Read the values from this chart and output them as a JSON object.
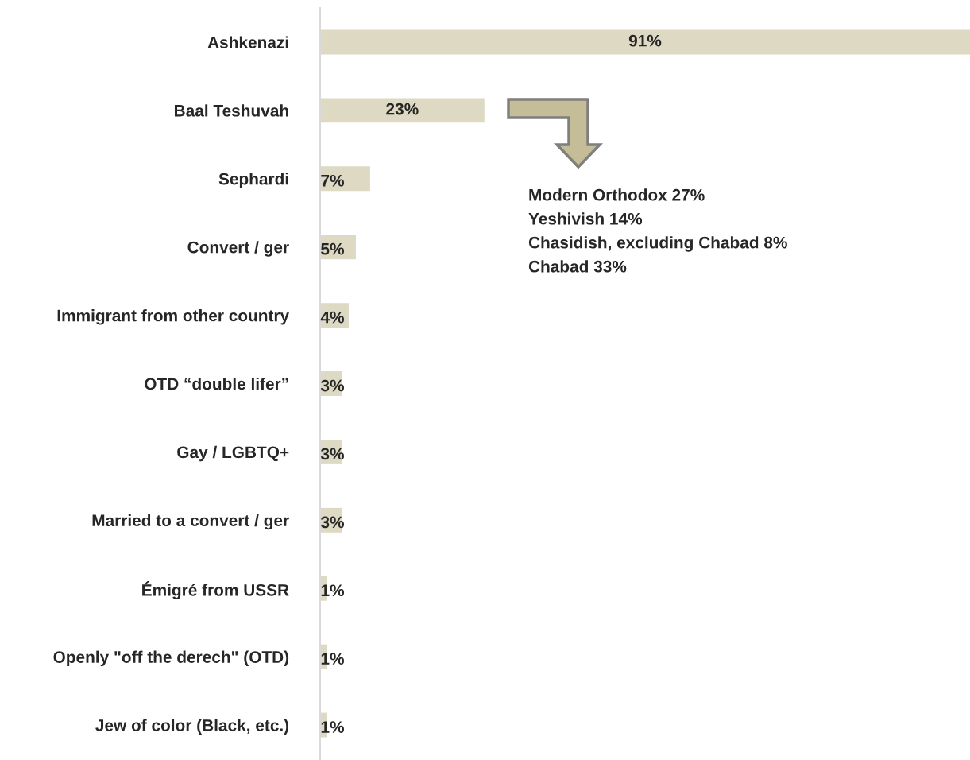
{
  "chart_data": {
    "type": "bar",
    "orientation": "horizontal",
    "categories": [
      "Ashkenazi",
      "Baal Teshuvah",
      "Sephardi",
      "Convert / ger",
      "Immigrant from other country",
      "OTD “double lifer”",
      "Gay / LGBTQ+",
      "Married to a convert / ger",
      "Émigré from USSR",
      "Openly \"off the derech\" (OTD)",
      "Jew of color (Black, etc.)"
    ],
    "values": [
      91,
      23,
      7,
      5,
      4,
      3,
      3,
      3,
      1,
      1,
      1
    ],
    "value_labels": [
      "91%",
      "23%",
      "7%",
      "5%",
      "4%",
      "3%",
      "3%",
      "3%",
      "1%",
      "1%",
      "1%"
    ],
    "color": "#ddd9c3",
    "xlim": [
      0,
      91
    ],
    "tick_labels": "y",
    "grid": false,
    "legend": false,
    "annotations": [
      "Modern Orthodox 27%",
      "Yeshivish 14%",
      "Chasidish, excluding Chabad 8%",
      "Chabad 33%"
    ]
  }
}
